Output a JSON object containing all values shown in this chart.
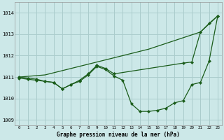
{
  "title": "Graphe pression niveau de la mer (hPa)",
  "background_color": "#cce8e8",
  "line_color": "#1a5c1a",
  "grid_color": "#aacccc",
  "xlim": [
    -0.5,
    23.5
  ],
  "ylim": [
    1008.75,
    1014.5
  ],
  "yticks": [
    1009,
    1010,
    1011,
    1012,
    1013,
    1014
  ],
  "xticks": [
    0,
    1,
    2,
    3,
    4,
    5,
    6,
    7,
    8,
    9,
    10,
    11,
    12,
    13,
    14,
    15,
    16,
    17,
    18,
    19,
    20,
    21,
    22,
    23
  ],
  "line_straight_x": [
    0,
    3,
    6,
    9,
    12,
    15,
    18,
    21,
    23
  ],
  "line_straight_y": [
    1011.0,
    1011.1,
    1011.4,
    1011.7,
    1012.0,
    1012.3,
    1012.7,
    1013.1,
    1013.85
  ],
  "line_ucurve_x": [
    0,
    1,
    2,
    3,
    4,
    5,
    6,
    7,
    8,
    9,
    10,
    11,
    12,
    13,
    14,
    15,
    16,
    17,
    18,
    19,
    20,
    21,
    22,
    23
  ],
  "line_ucurve_y": [
    1010.95,
    1010.9,
    1010.85,
    1010.8,
    1010.75,
    1010.45,
    1010.65,
    1010.8,
    1011.1,
    1011.5,
    1011.35,
    1011.05,
    1010.85,
    1009.75,
    1009.4,
    1009.4,
    1009.45,
    1009.55,
    1009.8,
    1009.9,
    1010.65,
    1010.75,
    1011.75,
    1013.85
  ],
  "line_middle_x": [
    0,
    1,
    2,
    3,
    4,
    5,
    6,
    7,
    8,
    9,
    10,
    11,
    19,
    20,
    21,
    22,
    23
  ],
  "line_middle_y": [
    1011.0,
    1010.95,
    1010.9,
    1010.8,
    1010.75,
    1010.45,
    1010.65,
    1010.85,
    1011.15,
    1011.55,
    1011.4,
    1011.15,
    1011.65,
    1011.7,
    1013.1,
    1013.5,
    1013.85
  ]
}
